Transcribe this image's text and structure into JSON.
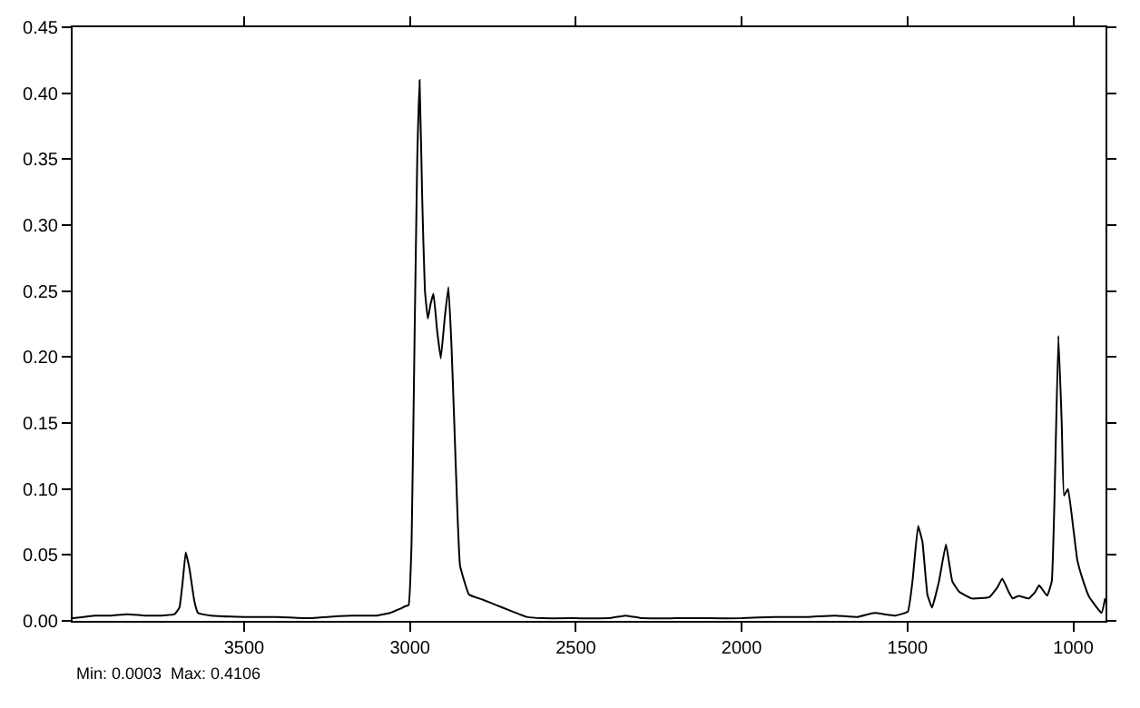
{
  "chart_data": {
    "type": "line",
    "annotations": [
      "Min: 0.0003  Max: 0.4106"
    ],
    "x": [
      4017,
      3950,
      3900,
      3852,
      3800,
      3750,
      3710,
      3695,
      3685,
      3676,
      3665,
      3650,
      3639,
      3600,
      3500,
      3400,
      3300,
      3250,
      3174,
      3100,
      3060,
      3031,
      3015,
      3004,
      2995,
      2986,
      2978,
      2971,
      2963,
      2955,
      2946,
      2938,
      2929,
      2918,
      2907,
      2895,
      2884,
      2875,
      2867,
      2858,
      2849,
      2822,
      2780,
      2740,
      2700,
      2648,
      2600,
      2500,
      2400,
      2350,
      2300,
      2200,
      2100,
      2000,
      1900,
      1800,
      1718,
      1650,
      1600,
      1537,
      1499,
      1485,
      1468,
      1455,
      1440,
      1426,
      1405,
      1384,
      1365,
      1344,
      1307,
      1253,
      1230,
      1214,
      1195,
      1183,
      1165,
      1134,
      1115,
      1103,
      1079,
      1065,
      1057,
      1045,
      1035,
      1028,
      1016,
      1000,
      988,
      970,
      952,
      915,
      904
    ],
    "series": [
      {
        "color": "#000000",
        "values": [
          0.002,
          0.004,
          0.004,
          0.005,
          0.004,
          0.004,
          0.005,
          0.01,
          0.03,
          0.052,
          0.04,
          0.015,
          0.006,
          0.004,
          0.003,
          0.003,
          0.002,
          0.003,
          0.004,
          0.004,
          0.006,
          0.009,
          0.011,
          0.012,
          0.06,
          0.216,
          0.35,
          0.41,
          0.32,
          0.251,
          0.229,
          0.24,
          0.248,
          0.22,
          0.199,
          0.23,
          0.253,
          0.21,
          0.155,
          0.09,
          0.042,
          0.02,
          0.016,
          0.012,
          0.008,
          0.003,
          0.002,
          0.002,
          0.002,
          0.004,
          0.002,
          0.002,
          0.002,
          0.002,
          0.003,
          0.003,
          0.004,
          0.003,
          0.006,
          0.004,
          0.007,
          0.03,
          0.072,
          0.06,
          0.02,
          0.01,
          0.03,
          0.058,
          0.03,
          0.022,
          0.017,
          0.018,
          0.025,
          0.032,
          0.022,
          0.017,
          0.019,
          0.017,
          0.022,
          0.027,
          0.019,
          0.03,
          0.09,
          0.216,
          0.15,
          0.095,
          0.1,
          0.07,
          0.046,
          0.03,
          0.018,
          0.006,
          0.017
        ]
      }
    ],
    "xlim": [
      4017,
      903
    ],
    "xticks": [
      3500,
      3000,
      2500,
      2000,
      1500,
      1000
    ],
    "ylim": [
      0,
      0.45
    ],
    "yticks": [
      {
        "value": 0,
        "label": "0.00"
      },
      {
        "value": 0.05,
        "label": "0.05"
      },
      {
        "value": 0.1,
        "label": "0.10"
      },
      {
        "value": 0.15,
        "label": "0.15"
      },
      {
        "value": 0.2,
        "label": "0.20"
      },
      {
        "value": 0.25,
        "label": "0.25"
      },
      {
        "value": 0.3,
        "label": "0.30"
      },
      {
        "value": 0.35,
        "label": "0.35"
      },
      {
        "value": 0.4,
        "label": "0.40"
      },
      {
        "value": 0.45,
        "label": "0.45"
      }
    ],
    "legend": false,
    "marker": "none",
    "line_style": "solid"
  }
}
